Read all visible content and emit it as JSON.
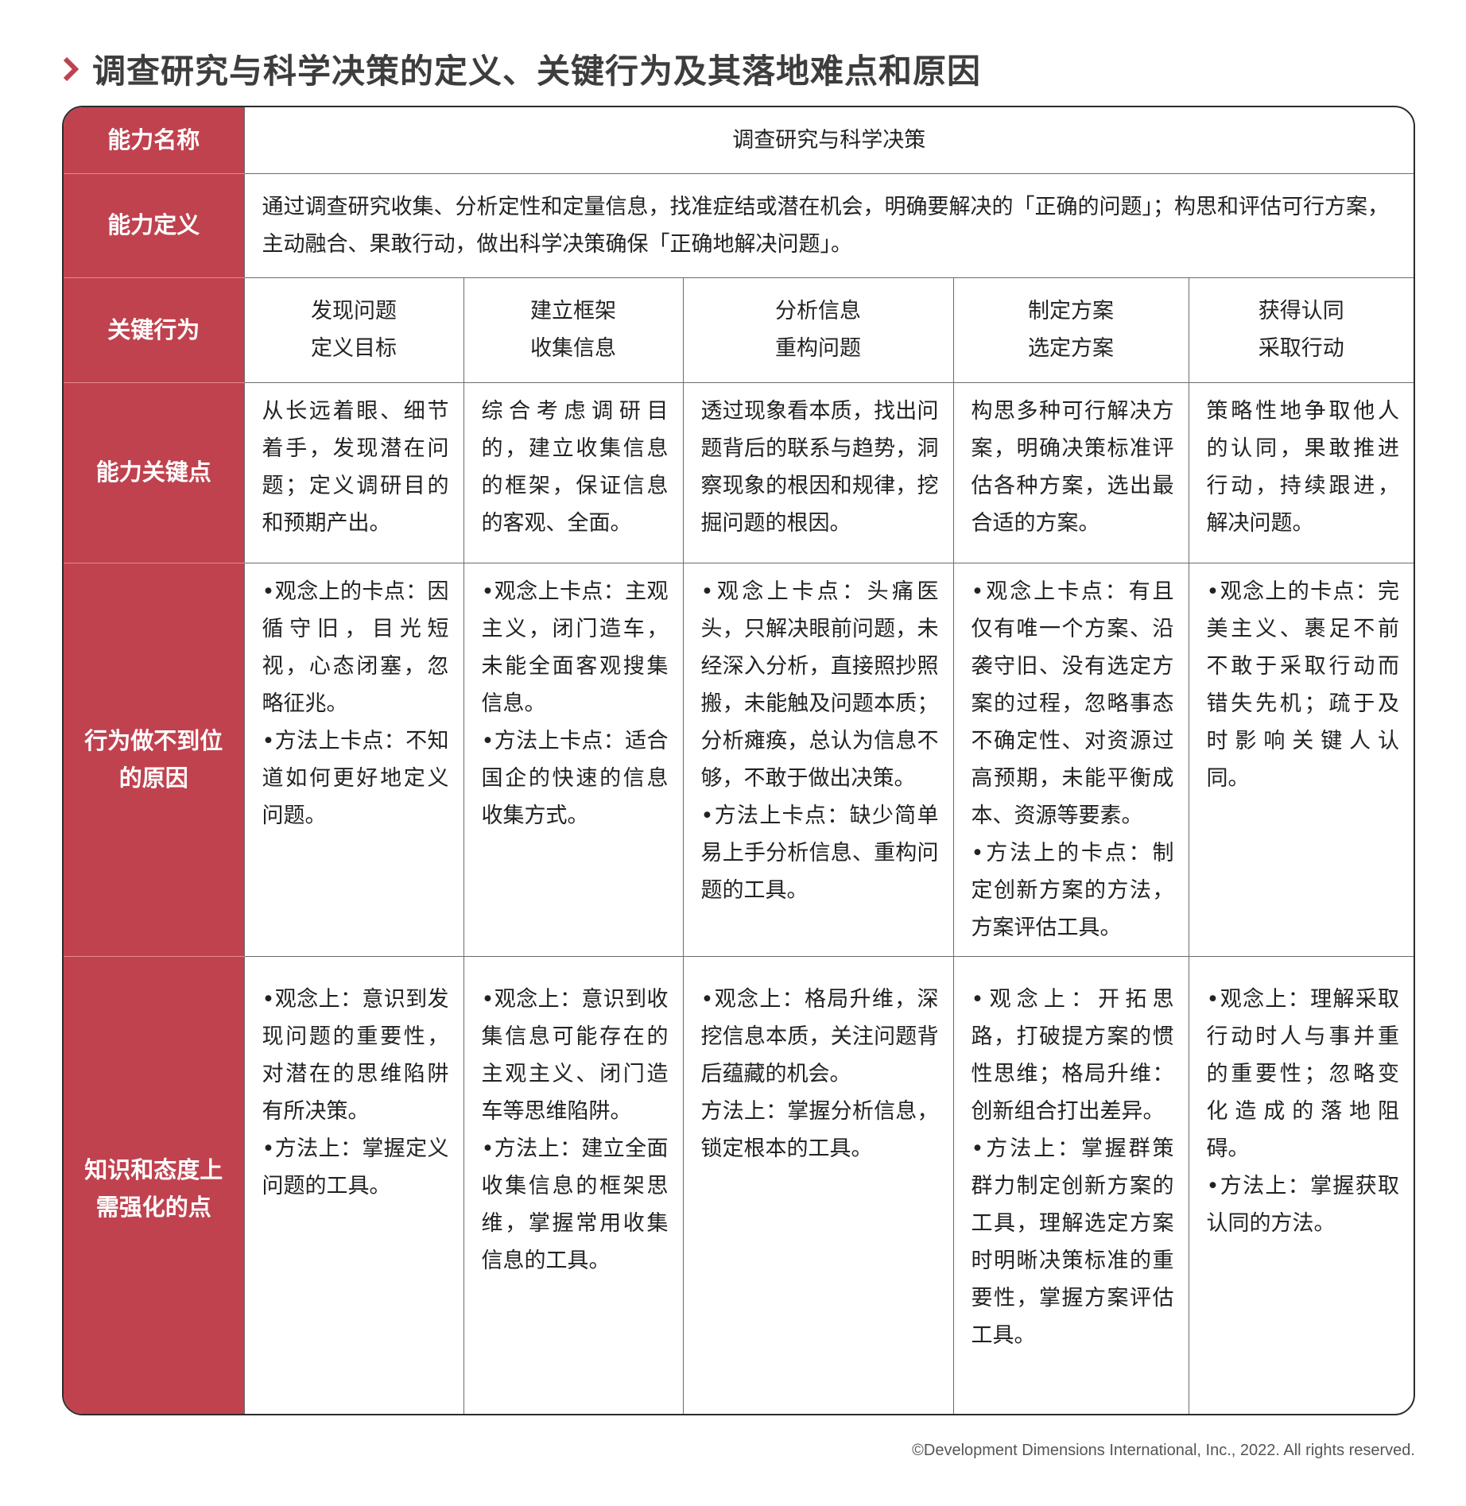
{
  "title": "调查研究与科学决策的定义、关键行为及其落地难点和原因",
  "rows": {
    "name": {
      "label": "能力名称",
      "value": "调查研究与科学决策"
    },
    "definition": {
      "label": "能力定义",
      "value": "通过调查研究收集、分析定性和定量信息，找准症结或潜在机会，明确要解决的「正确的问题」；构思和评估可行方案，主动融合、果敢行动，做出科学决策确保「正确地解决问题」。"
    },
    "key_behaviors": {
      "label": "关键行为",
      "items": [
        {
          "line1": "发现问题",
          "line2": "定义目标"
        },
        {
          "line1": "建立框架",
          "line2": "收集信息"
        },
        {
          "line1": "分析信息",
          "line2": "重构问题"
        },
        {
          "line1": "制定方案",
          "line2": "选定方案"
        },
        {
          "line1": "获得认同",
          "line2": "采取行动"
        }
      ]
    },
    "key_points": {
      "label": "能力关键点",
      "items": [
        "从长远着眼、细节着手，发现潜在问题；定义调研目的和预期产出。",
        "综合考虑调研目的，建立收集信息的框架，保证信息的客观、全面。",
        "透过现象看本质，找出问题背后的联系与趋势，洞察现象的根因和规律，挖掘问题的根因。",
        "构思多种可行解决方案，明确决策标准评估各种方案，选出最合适的方案。",
        "策略性地争取他人的认同，果敢推进行动，持续跟进，解决问题。"
      ]
    },
    "reasons": {
      "label_line1": "行为做不到位",
      "label_line2": "的原因",
      "items": [
        {
          "p1": "•观念上的卡点：因循守旧，目光短视，心态闭塞，忽略征兆。",
          "p2": "•方法上卡点：不知道如何更好地定义问题。"
        },
        {
          "p1": "•观念上卡点：主观主义，闭门造车，未能全面客观搜集信息。",
          "p2": "•方法上卡点：适合国企的快速的信息收集方式。"
        },
        {
          "p1": "•观念上卡点：头痛医头，只解决眼前问题，未经深入分析，直接照抄照搬，未能触及问题本质；分析瘫痪，总认为信息不够，不敢于做出决策。",
          "p2": "•方法上卡点：缺少简单易上手分析信息、重构问题的工具。"
        },
        {
          "p1": "•观念上卡点：有且仅有唯一个方案、沿袭守旧、没有选定方案的过程，忽略事态不确定性、对资源过高预期，未能平衡成本、资源等要素。",
          "p2": "•方法上的卡点：制定创新方案的方法，方案评估工具。"
        },
        {
          "p1": "•观念上的卡点：完美主义、裹足不前不敢于采取行动而错失先机；疏于及时影响关键人认同。",
          "p2": ""
        }
      ]
    },
    "strengthen": {
      "label_line1": "知识和态度上",
      "label_line2": "需强化的点",
      "items": [
        {
          "p1": "•观念上：意识到发现问题的重要性，对潜在的思维陷阱有所决策。",
          "p2": "•方法上：掌握定义问题的工具。"
        },
        {
          "p1": "•观念上：意识到收集信息可能存在的主观主义、闭门造车等思维陷阱。",
          "p2": "•方法上：建立全面收集信息的框架思维，掌握常用收集信息的工具。"
        },
        {
          "p1": "•观念上：格局升维，深挖信息本质，关注问题背后蕴藏的机会。",
          "p2": "方法上：掌握分析信息，锁定根本的工具。"
        },
        {
          "p1": "•观念上：开拓思路，打破提方案的惯性思维；格局升维：创新组合打出差异。",
          "p2": "•方法上：掌握群策群力制定创新方案的工具，理解选定方案时明晰决策标准的重要性，掌握方案评估工具。"
        },
        {
          "p1": "•观念上：理解采取行动时人与事并重的重要性；忽略变化造成的落地阻碍。",
          "p2": "•方法上：掌握获取认同的方法。"
        }
      ]
    }
  },
  "footer": "©Development Dimensions International, Inc., 2022. All rights reserved.",
  "colors": {
    "accent": "#c0424f",
    "border": "#6b6b6b",
    "title": "#3d3d3d"
  }
}
